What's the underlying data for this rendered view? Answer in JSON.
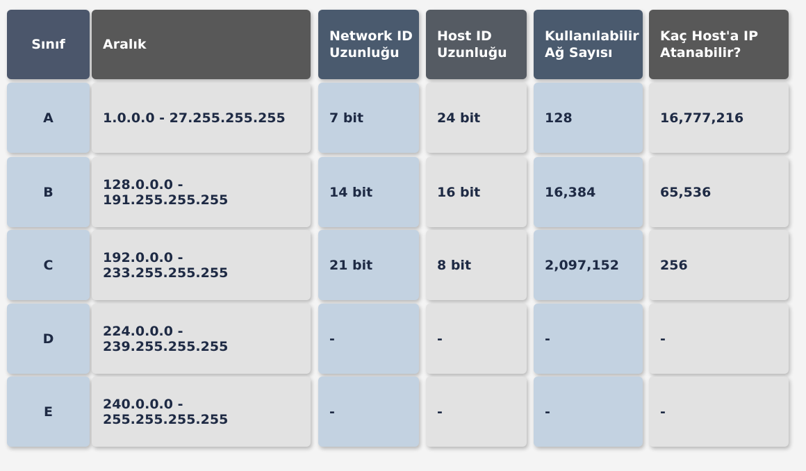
{
  "table": {
    "headers": [
      "Sınıf",
      "Aralık",
      "Network ID Uzunluğu",
      "Host ID Uzunluğu",
      "Kullanılabilir Ağ Sayısı",
      "Kaç Host'a IP Atanabilir?"
    ],
    "rows": [
      [
        "A",
        "1.0.0.0 - 27.255.255.255",
        "7 bit",
        "24 bit",
        "128",
        "16,777,216"
      ],
      [
        "B",
        "128.0.0.0 - 191.255.255.255",
        "14 bit",
        "16 bit",
        "16,384",
        "65,536"
      ],
      [
        "C",
        "192.0.0.0 - 233.255.255.255",
        "21 bit",
        "8 bit",
        "2,097,152",
        "256"
      ],
      [
        "D",
        "224.0.0.0 - 239.255.255.255",
        "-",
        "-",
        "-",
        "-"
      ],
      [
        "E",
        "240.0.0.0 - 255.255.255.255",
        "-",
        "-",
        "-",
        "-"
      ]
    ]
  }
}
